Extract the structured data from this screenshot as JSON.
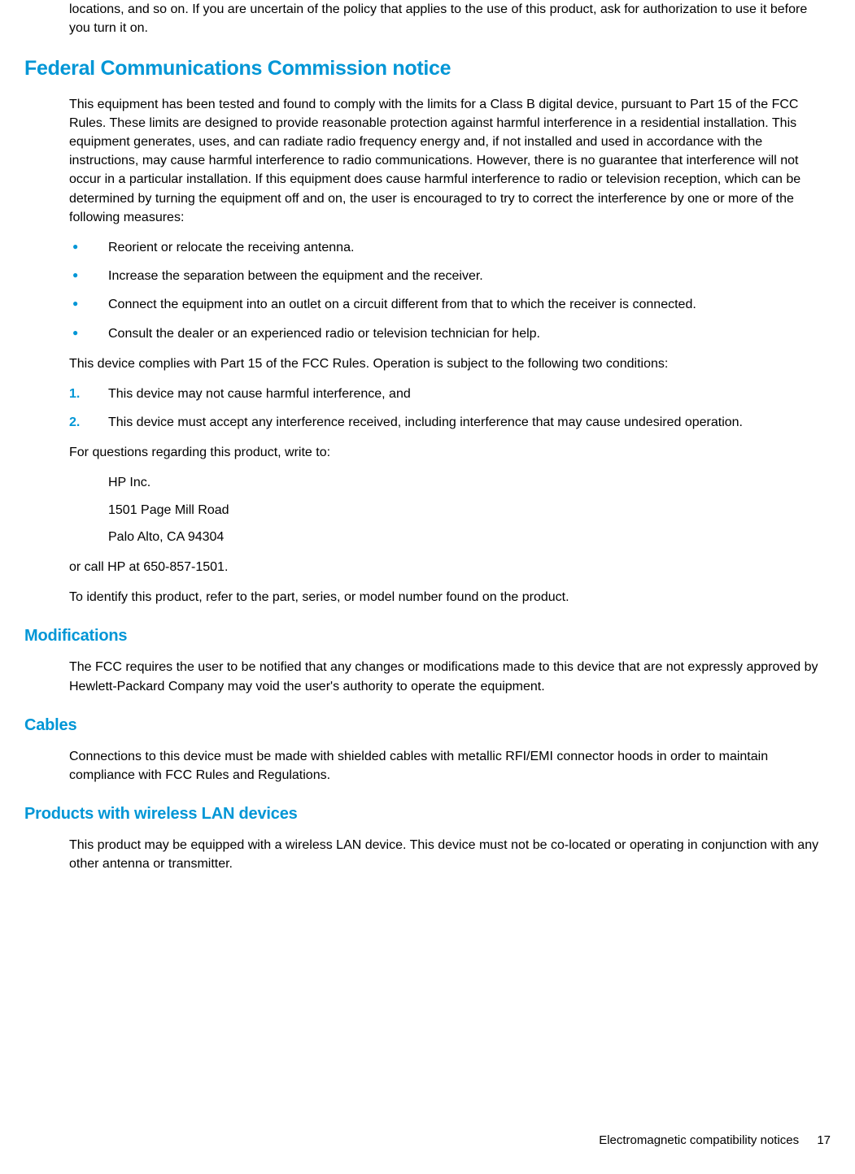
{
  "colors": {
    "heading_color": "#0096d6",
    "body_text": "#000000",
    "background": "#ffffff",
    "bullet_color": "#0096d6"
  },
  "typography": {
    "body_fontsize": 16,
    "h2_fontsize": 25,
    "h3_fontsize": 20,
    "line_height": 1.45
  },
  "intro_continuation": "locations, and so on. If you are uncertain of the policy that applies to the use of this product, ask for authorization to use it before you turn it on.",
  "sections": {
    "fcc": {
      "heading": "Federal Communications Commission notice",
      "para1": "This equipment has been tested and found to comply with the limits for a Class B digital device, pursuant to Part 15 of the FCC Rules. These limits are designed to provide reasonable protection against harmful interference in a residential installation. This equipment generates, uses, and can radiate radio frequency energy and, if not installed and used in accordance with the instructions, may cause harmful interference to radio communications. However, there is no guarantee that interference will not occur in a particular installation. If this equipment does cause harmful interference to radio or television reception, which can be determined by turning the equipment off and on, the user is encouraged to try to correct the interference by one or more of the following measures:",
      "bullets": [
        "Reorient or relocate the receiving antenna.",
        "Increase the separation between the equipment and the receiver.",
        "Connect the equipment into an outlet on a circuit different from that to which the receiver is connected.",
        "Consult the dealer or an experienced radio or television technician for help."
      ],
      "para2": "This device complies with Part 15 of the FCC Rules. Operation is subject to the following two conditions:",
      "numbered": [
        "This device may not cause harmful interference, and",
        "This device must accept any interference received, including interference that may cause undesired operation."
      ],
      "para3": "For questions regarding this product, write to:",
      "address": [
        "HP Inc.",
        "1501 Page Mill Road",
        "Palo Alto, CA 94304"
      ],
      "para4": "or call HP at 650-857-1501.",
      "para5": "To identify this product, refer to the part, series, or model number found on the product."
    },
    "modifications": {
      "heading": "Modifications",
      "para1": "The FCC requires the user to be notified that any changes or modifications made to this device that are not expressly approved by Hewlett-Packard Company may void the user's authority to operate the equipment."
    },
    "cables": {
      "heading": "Cables",
      "para1": "Connections to this device must be made with shielded cables with metallic RFI/EMI connector hoods in order to maintain compliance with FCC Rules and Regulations."
    },
    "wireless": {
      "heading": "Products with wireless LAN devices",
      "para1": "This product may be equipped with a wireless LAN device. This device must not be co-located or operating in conjunction with any other antenna or transmitter."
    }
  },
  "footer": {
    "text": "Electromagnetic compatibility notices",
    "page": "17"
  }
}
